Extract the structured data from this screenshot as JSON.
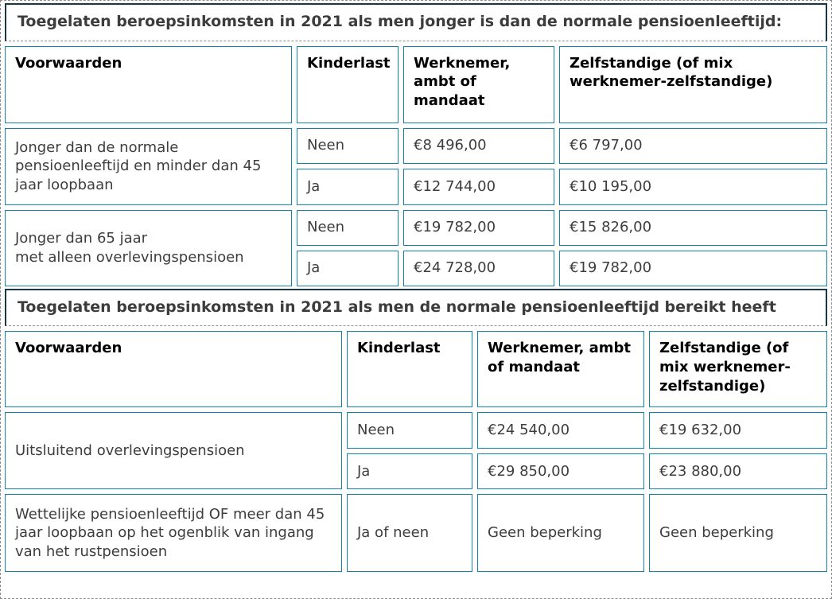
{
  "page": {
    "title1": "Toegelaten beroepsinkomsten in 2021 als men jonger is dan de normale pensioenleeftijd:",
    "title2": "Toegelaten beroepsinkomsten in 2021 als men de normale pensioenleeftijd bereikt heeft"
  },
  "colors": {
    "cell_border": "#1283ad",
    "title_border": "#1c3642",
    "dashed_border": "#8c8c8c",
    "text": "#3d3d3d"
  },
  "table1": {
    "headers": [
      "Voorwaarden",
      "Kinderlast",
      "Werknemer, ambt of mandaat",
      "Zelfstandige (of mix werknemer-zelfstandige)"
    ],
    "groups": [
      {
        "condition": "Jonger dan de normale pensioenleeftijd en minder dan 45 jaar loopbaan",
        "rows": [
          {
            "kinderlast": "Neen",
            "werknemer": "€8 496,00",
            "zelfstandige": "€6 797,00"
          },
          {
            "kinderlast": "Ja",
            "werknemer": "€12 744,00",
            "zelfstandige": "€10 195,00"
          }
        ]
      },
      {
        "condition": "Jonger dan 65 jaar\nmet alleen overlevingspensioen",
        "rows": [
          {
            "kinderlast": "Neen",
            "werknemer": "€19 782,00",
            "zelfstandige": "€15 826,00"
          },
          {
            "kinderlast": "Ja",
            "werknemer": "€24 728,00",
            "zelfstandige": "€19 782,00"
          }
        ]
      }
    ]
  },
  "table2": {
    "headers": [
      "Voorwaarden",
      "Kinderlast",
      "Werknemer, ambt of mandaat",
      "Zelfstandige (of mix werknemer-zelfstandige)"
    ],
    "groups": [
      {
        "condition": "Uitsluitend overlevingspensioen",
        "rows": [
          {
            "kinderlast": "Neen",
            "werknemer": "€24 540,00",
            "zelfstandige": "€19 632,00"
          },
          {
            "kinderlast": "Ja",
            "werknemer": "€29 850,00",
            "zelfstandige": "€23 880,00"
          }
        ]
      }
    ],
    "last_row": {
      "condition": "Wettelijke pensioenleeftijd OF meer dan 45 jaar loopbaan op het ogenblik van ingang van het rustpensioen",
      "kinderlast": "Ja of neen",
      "werknemer": "Geen beperking",
      "zelfstandige": "Geen beperking"
    }
  }
}
